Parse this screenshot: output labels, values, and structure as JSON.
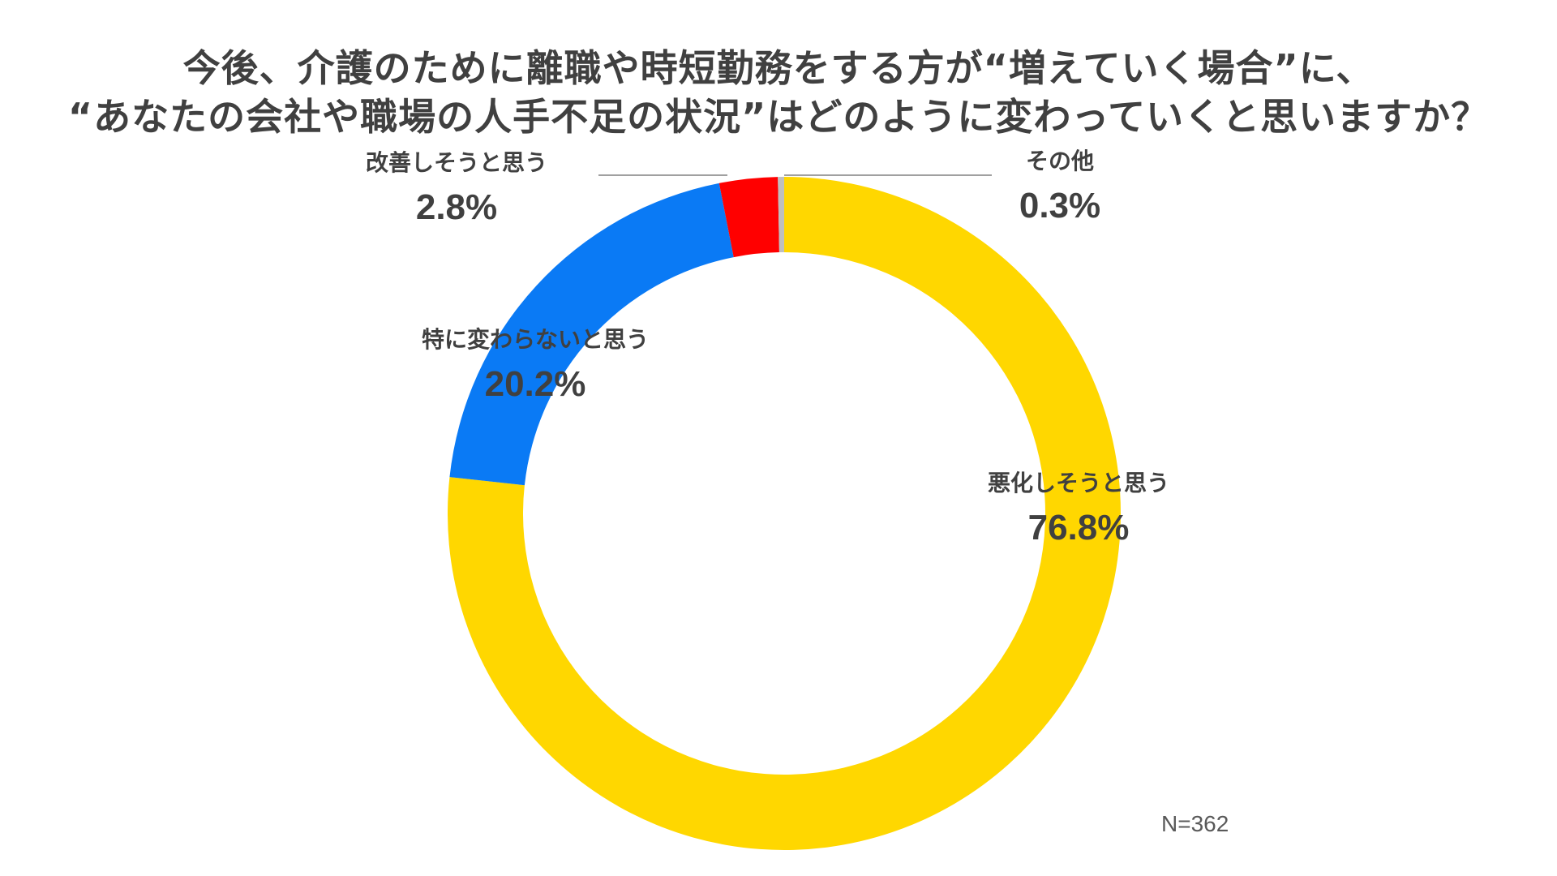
{
  "title": {
    "line1": "今後、介護のために離職や時短勤務をする方が“増えていく場合”に、",
    "line2": "“あなたの会社や職場の人手不足の状況”はどのように変わっていくと思いますか？"
  },
  "sample_size": "N=362",
  "chart_data": {
    "type": "pie",
    "subtype": "donut",
    "title": "今後、介護のために離職や時短勤務をする方が“増えていく場合”に、“あなたの会社や職場の人手不足の状況”はどのように変わっていくと思いますか？",
    "categories": [
      "悪化しそうと思う",
      "特に変わらないと思う",
      "改善しそうと思う",
      "その他"
    ],
    "values": [
      76.8,
      20.2,
      2.8,
      0.3
    ],
    "value_labels": [
      "76.8%",
      "20.2%",
      "2.8%",
      "0.3%"
    ],
    "colors": [
      "#FFD700",
      "#0A7AF5",
      "#FF0000",
      "#BFBFBF"
    ],
    "start": "12 o'clock",
    "direction": "clockwise",
    "legend": "none",
    "note": "N=362"
  }
}
